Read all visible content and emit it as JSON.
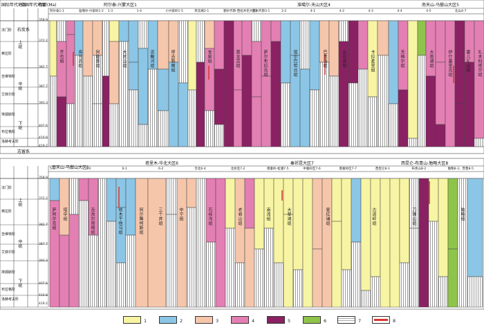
{
  "panels": [
    {
      "id": "top",
      "side_headers": {
        "system": "石炭系",
        "intl_period": "国际年代地层",
        "china_period": "中国年代地层",
        "age_label": "年龄(Ma)",
        "bottom_system": "志留系"
      },
      "stages": [
        "法门阶",
        "弗拉阶",
        "吉维特阶",
        "艾菲尔阶",
        "埃姆斯阶",
        "布拉格阶",
        "洛赫考夫阶"
      ],
      "china_stages": [
        "邵东阶",
        "阳朔阶",
        "锡矿山阶",
        "佘田桥阶",
        "东岗岭阶",
        "应堂阶",
        "四排阶",
        "郁江阶",
        "那高岭阶",
        "莲花山阶"
      ],
      "series": [
        "上统",
        "中统",
        "下统"
      ],
      "ages": [
        "358.9",
        "372.2",
        "382.7",
        "387.7",
        "393.3",
        "407.6",
        "410.8",
        "419.2"
      ],
      "regions": [
        {
          "name": "阿尔泰-兴蒙大区1"
        },
        {
          "name": "准噶尔-天山大区4"
        },
        {
          "name": "南天山-马鬃山大区5"
        }
      ],
      "subregions": [
        "阿尔泰1-1",
        "准噶尔-兴安岭1-2",
        "1-3",
        "1-4",
        "小兴安岭1-5",
        "柴北缘2-1",
        "额尔齐斯-西拉木伦大区3",
        "额尔齐斯3-1",
        "3-2",
        "4-1",
        "4-2",
        "4-3",
        "4-4",
        "4-5",
        "北山4-7"
      ],
      "formations": [
        "齐也组",
        "库马苏组",
        "阿勒泰组",
        "大民山组",
        "泥鳅河组",
        "呼吉勒图组",
        "宝泉组",
        "黑龙宫组",
        "萨尔布拉克组",
        "塔尔巴哈台组",
        "巴音沟组",
        "头苏泉组",
        "卡拉麦里组",
        "天格尔组",
        "大南湖组",
        "伊什基里克组",
        "霍儿扎山组",
        "扎木科塔尔组"
      ]
    },
    {
      "id": "bottom",
      "regions": [
        {
          "name": "南天山-马鬃山大区5"
        },
        {
          "name": "塔里木-华北大区6"
        },
        {
          "name": "秦祁昆大区7"
        },
        {
          "name": "西昆仑-布青山-勉略大区8"
        }
      ],
      "subregions": [
        "5-1",
        "5-2",
        "6-1",
        "6-2",
        "华北6-4",
        "北祁连7-2",
        "南秦岭-松潘7-5",
        "中秦岭区7-6",
        "南秦岭区7-7",
        "西昆仑8-1",
        "布青山8-2",
        "勉略8-3、苏鲁8-5"
      ],
      "formations": [
        "萨阿尔克组",
        "塔中组",
        "克孜尔塔格组",
        "依木干他乌组",
        "阿尔腾柯斯组",
        "三个井组",
        "中宁组",
        "石岐沟组",
        "老君山组",
        "南湾组",
        "大草滩组",
        "星红铺组",
        "古道岭组",
        "刀锋山组",
        "勉略组"
      ]
    }
  ],
  "legend": [
    {
      "num": "1",
      "color": "#f7f4a3"
    },
    {
      "num": "2",
      "color": "#8cc6e6"
    },
    {
      "num": "3",
      "color": "#f6c6ab"
    },
    {
      "num": "4",
      "color": "#e37fb3"
    },
    {
      "num": "5",
      "color": "#8a2163"
    },
    {
      "num": "6",
      "color": "#8fc44a"
    },
    {
      "num": "7",
      "color": "#ffffff"
    },
    {
      "num": "8",
      "color": "#d9332e"
    }
  ]
}
